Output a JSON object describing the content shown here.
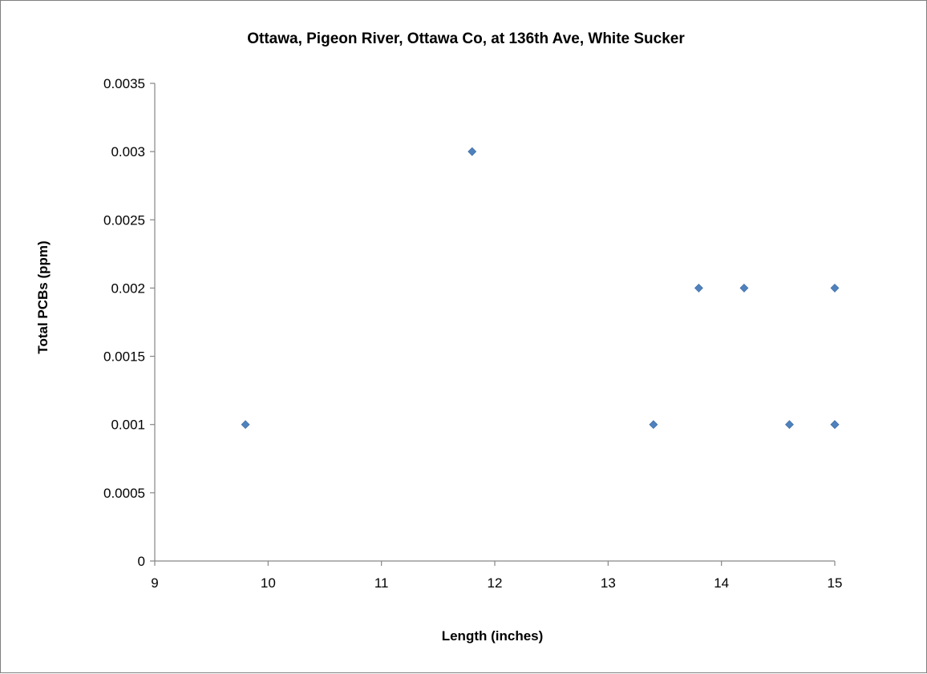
{
  "chart_data": {
    "type": "scatter",
    "title": "Ottawa, Pigeon River, Ottawa Co, at 136th Ave, White Sucker",
    "xlabel": "Length (inches)",
    "ylabel": "Total PCBs (ppm)",
    "xlim": [
      9,
      15
    ],
    "ylim": [
      0,
      0.0035
    ],
    "x_ticks": [
      "9",
      "10",
      "11",
      "12",
      "13",
      "14",
      "15"
    ],
    "y_ticks": [
      "0",
      "0.0005",
      "0.001",
      "0.0015",
      "0.002",
      "0.0025",
      "0.003",
      "0.0035"
    ],
    "grid": false,
    "legend": "none",
    "marker": "diamond",
    "marker_color": "#4f81bd",
    "points": [
      {
        "x": 9.8,
        "y": 0.001
      },
      {
        "x": 11.8,
        "y": 0.003
      },
      {
        "x": 13.4,
        "y": 0.001
      },
      {
        "x": 13.8,
        "y": 0.002
      },
      {
        "x": 14.2,
        "y": 0.002
      },
      {
        "x": 14.6,
        "y": 0.001
      },
      {
        "x": 15.0,
        "y": 0.002
      },
      {
        "x": 15.0,
        "y": 0.001
      },
      {
        "x": 15.0,
        "y": 0.001
      }
    ]
  }
}
